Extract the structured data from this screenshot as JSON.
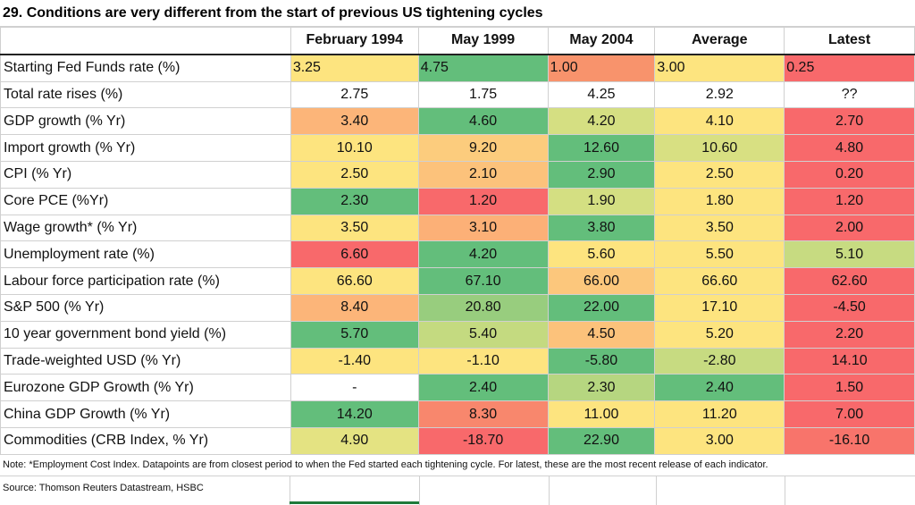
{
  "title": "29. Conditions are very different from the start of previous US tightening cycles",
  "chart_data": {
    "type": "table",
    "columns": [
      "February 1994",
      "May 1999",
      "May 2004",
      "Average",
      "Latest"
    ],
    "rows": [
      {
        "label": "Starting Fed Funds rate (%)",
        "values": [
          "3.25",
          "4.75",
          "1.00",
          "3.00",
          "0.25"
        ],
        "colors": [
          "#fde47f",
          "#63be7b",
          "#f8936c",
          "#fde47f",
          "#f8696b"
        ]
      },
      {
        "label": "Total rate rises (%)",
        "values": [
          "2.75",
          "1.75",
          "4.25",
          "2.92",
          "??"
        ],
        "colors": [
          "#ffffff",
          "#ffffff",
          "#ffffff",
          "#ffffff",
          "#ffffff"
        ]
      },
      {
        "label": "GDP growth (% Yr)",
        "values": [
          "3.40",
          "4.60",
          "4.20",
          "4.10",
          "2.70"
        ],
        "colors": [
          "#fcb579",
          "#63be7b",
          "#d5df82",
          "#fde47f",
          "#f8696b"
        ]
      },
      {
        "label": "Import growth (% Yr)",
        "values": [
          "10.10",
          "9.20",
          "12.60",
          "10.60",
          "4.80"
        ],
        "colors": [
          "#fde47f",
          "#fccc7d",
          "#63be7b",
          "#d8e082",
          "#f8696b"
        ]
      },
      {
        "label": "CPI (% Yr)",
        "values": [
          "2.50",
          "2.10",
          "2.90",
          "2.50",
          "0.20"
        ],
        "colors": [
          "#fde47f",
          "#fcc27b",
          "#63be7b",
          "#fde47f",
          "#f8696b"
        ]
      },
      {
        "label": "Core PCE (%Yr)",
        "values": [
          "2.30",
          "1.20",
          "1.90",
          "1.80",
          "1.20"
        ],
        "colors": [
          "#63be7b",
          "#f8696b",
          "#d4df82",
          "#fde47f",
          "#f8696b"
        ]
      },
      {
        "label": "Wage growth* (% Yr)",
        "values": [
          "3.50",
          "3.10",
          "3.80",
          "3.50",
          "2.00"
        ],
        "colors": [
          "#fde47f",
          "#fcb077",
          "#63be7b",
          "#fde47f",
          "#f8696b"
        ]
      },
      {
        "label": "Unemployment rate (%)",
        "values": [
          "6.60",
          "4.20",
          "5.60",
          "5.50",
          "5.10"
        ],
        "colors": [
          "#f8696b",
          "#63be7b",
          "#fde47f",
          "#fde47f",
          "#c7db81"
        ]
      },
      {
        "label": "Labour force participation rate (%)",
        "values": [
          "66.60",
          "67.10",
          "66.00",
          "66.60",
          "62.60"
        ],
        "colors": [
          "#fde47f",
          "#63be7b",
          "#fcc77c",
          "#fde47f",
          "#f8696b"
        ]
      },
      {
        "label": "S&P 500 (% Yr)",
        "values": [
          "8.40",
          "20.80",
          "22.00",
          "17.10",
          "-4.50"
        ],
        "colors": [
          "#fcb579",
          "#98cd7e",
          "#63be7b",
          "#fde47f",
          "#f8696b"
        ]
      },
      {
        "label": "10 year government bond yield (%)",
        "values": [
          "5.70",
          "5.40",
          "4.50",
          "5.20",
          "2.20"
        ],
        "colors": [
          "#63be7b",
          "#c4da80",
          "#fcc27b",
          "#fde47f",
          "#f8696b"
        ]
      },
      {
        "label": "Trade-weighted USD (% Yr)",
        "values": [
          "-1.40",
          "-1.10",
          "-5.80",
          "-2.80",
          "14.10"
        ],
        "colors": [
          "#fde47f",
          "#fde47f",
          "#63be7b",
          "#c7db81",
          "#f8696b"
        ]
      },
      {
        "label": "Eurozone GDP Growth (% Yr)",
        "values": [
          "-",
          "2.40",
          "2.30",
          "2.40",
          "1.50"
        ],
        "colors": [
          "#ffffff",
          "#63be7b",
          "#b6d680",
          "#63be7b",
          "#f8696b"
        ]
      },
      {
        "label": "China GDP Growth (% Yr)",
        "values": [
          "14.20",
          "8.30",
          "11.00",
          "11.20",
          "7.00"
        ],
        "colors": [
          "#63be7b",
          "#f8876d",
          "#fde47f",
          "#fde47f",
          "#f8696b"
        ]
      },
      {
        "label": "Commodities (CRB Index, % Yr)",
        "values": [
          "4.90",
          "-18.70",
          "22.90",
          "3.00",
          "-16.10"
        ],
        "colors": [
          "#e4e382",
          "#f8696b",
          "#63be7b",
          "#fde47f",
          "#f8746b"
        ]
      }
    ]
  },
  "note": "Note: *Employment Cost Index. Datapoints are from closest period to when the Fed started each tightening cycle. For latest, these are the most recent release of each indicator.",
  "source": "Source: Thomson Reuters Datastream, HSBC"
}
